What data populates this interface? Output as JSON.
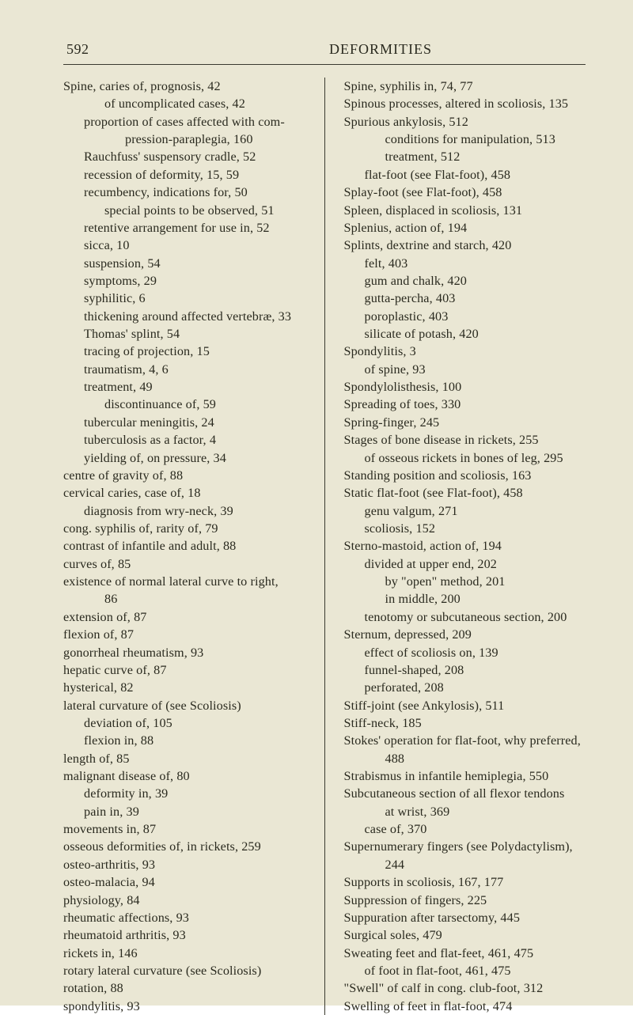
{
  "header": {
    "page_number": "592",
    "title": "DEFORMITIES"
  },
  "colors": {
    "background": "#eae7d4",
    "text": "#2a2a1f",
    "rule": "#3a3a2f"
  },
  "left_column": [
    {
      "l": 0,
      "t": "Spine, caries of, prognosis, 42"
    },
    {
      "l": 2,
      "t": "of uncomplicated cases, 42"
    },
    {
      "l": 1,
      "t": "proportion of cases affected with com-"
    },
    {
      "l": 3,
      "t": "pression-paraplegia, 160"
    },
    {
      "l": 1,
      "t": "Rauchfuss' suspensory cradle, 52"
    },
    {
      "l": 1,
      "t": "recession of deformity, 15, 59"
    },
    {
      "l": 1,
      "t": "recumbency, indications for, 50"
    },
    {
      "l": 2,
      "t": "special points to be observed, 51"
    },
    {
      "l": 1,
      "t": "retentive arrangement for use in, 52"
    },
    {
      "l": 1,
      "t": "sicca, 10"
    },
    {
      "l": 1,
      "t": "suspension, 54"
    },
    {
      "l": 1,
      "t": "symptoms, 29"
    },
    {
      "l": 1,
      "t": "syphilitic, 6"
    },
    {
      "l": 1,
      "t": "thickening around affected vertebræ, 33"
    },
    {
      "l": 1,
      "t": "Thomas' splint, 54"
    },
    {
      "l": 1,
      "t": "tracing of projection, 15"
    },
    {
      "l": 1,
      "t": "traumatism, 4, 6"
    },
    {
      "l": 1,
      "t": "treatment, 49"
    },
    {
      "l": 2,
      "t": "discontinuance of, 59"
    },
    {
      "l": 1,
      "t": "tubercular meningitis, 24"
    },
    {
      "l": 1,
      "t": "tuberculosis as a factor, 4"
    },
    {
      "l": 1,
      "t": "yielding of, on pressure, 34"
    },
    {
      "l": 0,
      "t": "centre of gravity of, 88"
    },
    {
      "l": 0,
      "t": "cervical caries, case of, 18"
    },
    {
      "l": 1,
      "t": "diagnosis from wry-neck, 39"
    },
    {
      "l": 0,
      "t": "cong. syphilis of, rarity of, 79"
    },
    {
      "l": 0,
      "t": "contrast of infantile and adult, 88"
    },
    {
      "l": 0,
      "t": "curves of, 85"
    },
    {
      "l": 0,
      "t": "existence of normal lateral curve to right,"
    },
    {
      "l": 2,
      "t": "86"
    },
    {
      "l": 0,
      "t": "extension of, 87"
    },
    {
      "l": 0,
      "t": "flexion of, 87"
    },
    {
      "l": 0,
      "t": "gonorrheal rheumatism, 93"
    },
    {
      "l": 0,
      "t": "hepatic curve of, 87"
    },
    {
      "l": 0,
      "t": "hysterical, 82"
    },
    {
      "l": 0,
      "t": "lateral curvature of (see Scoliosis)"
    },
    {
      "l": 1,
      "t": "deviation of, 105"
    },
    {
      "l": 1,
      "t": "flexion in, 88"
    },
    {
      "l": 0,
      "t": "length of, 85"
    },
    {
      "l": 0,
      "t": "malignant disease of, 80"
    },
    {
      "l": 1,
      "t": "deformity in, 39"
    },
    {
      "l": 1,
      "t": "pain in, 39"
    },
    {
      "l": 0,
      "t": "movements in, 87"
    },
    {
      "l": 0,
      "t": "osseous deformities of, in rickets, 259"
    },
    {
      "l": 0,
      "t": "osteo-arthritis, 93"
    },
    {
      "l": 0,
      "t": "osteo-malacia, 94"
    },
    {
      "l": 0,
      "t": "physiology, 84"
    },
    {
      "l": 0,
      "t": "rheumatic affections, 93"
    },
    {
      "l": 0,
      "t": "rheumatoid arthritis, 93"
    },
    {
      "l": 0,
      "t": "rickets in, 146"
    },
    {
      "l": 0,
      "t": "rotary lateral curvature (see Scoliosis)"
    },
    {
      "l": 0,
      "t": "rotation, 88"
    },
    {
      "l": 0,
      "t": "spondylitis, 93"
    }
  ],
  "right_column": [
    {
      "l": 0,
      "t": "Spine, syphilis in, 74, 77"
    },
    {
      "l": 0,
      "t": "Spinous processes, altered in scoliosis, 135"
    },
    {
      "l": 0,
      "t": "Spurious ankylosis, 512"
    },
    {
      "l": 2,
      "t": "conditions for manipulation, 513"
    },
    {
      "l": 2,
      "t": "treatment, 512"
    },
    {
      "l": 1,
      "t": "flat-foot (see Flat-foot), 458"
    },
    {
      "l": 0,
      "t": "Splay-foot (see Flat-foot), 458"
    },
    {
      "l": 0,
      "t": "Spleen, displaced in scoliosis, 131"
    },
    {
      "l": 0,
      "t": "Splenius, action of, 194"
    },
    {
      "l": 0,
      "t": "Splints, dextrine and starch, 420"
    },
    {
      "l": 1,
      "t": "felt, 403"
    },
    {
      "l": 1,
      "t": "gum and chalk, 420"
    },
    {
      "l": 1,
      "t": "gutta-percha, 403"
    },
    {
      "l": 1,
      "t": "poroplastic, 403"
    },
    {
      "l": 1,
      "t": "silicate of potash, 420"
    },
    {
      "l": 0,
      "t": "Spondylitis, 3"
    },
    {
      "l": 1,
      "t": "of spine, 93"
    },
    {
      "l": 0,
      "t": "Spondylolisthesis, 100"
    },
    {
      "l": 0,
      "t": "Spreading of toes, 330"
    },
    {
      "l": 0,
      "t": "Spring-finger, 245"
    },
    {
      "l": 0,
      "t": "Stages of bone disease in rickets, 255"
    },
    {
      "l": 1,
      "t": "of osseous rickets in bones of leg, 295"
    },
    {
      "l": 0,
      "t": "Standing position and scoliosis, 163"
    },
    {
      "l": 0,
      "t": "Static flat-foot (see Flat-foot), 458"
    },
    {
      "l": 1,
      "t": "genu valgum, 271"
    },
    {
      "l": 1,
      "t": "scoliosis, 152"
    },
    {
      "l": 0,
      "t": "Sterno-mastoid, action of, 194"
    },
    {
      "l": 1,
      "t": "divided at upper end, 202"
    },
    {
      "l": 2,
      "t": "by \"open\" method, 201"
    },
    {
      "l": 2,
      "t": "in middle, 200"
    },
    {
      "l": 1,
      "t": "tenotomy or subcutaneous section, 200"
    },
    {
      "l": 0,
      "t": "Sternum, depressed, 209"
    },
    {
      "l": 1,
      "t": "effect of scoliosis on, 139"
    },
    {
      "l": 1,
      "t": "funnel-shaped, 208"
    },
    {
      "l": 1,
      "t": "perforated, 208"
    },
    {
      "l": 0,
      "t": "Stiff-joint (see Ankylosis), 511"
    },
    {
      "l": 0,
      "t": "Stiff-neck, 185"
    },
    {
      "l": 0,
      "t": "Stokes' operation for flat-foot, why preferred,"
    },
    {
      "l": 2,
      "t": "488"
    },
    {
      "l": 0,
      "t": "Strabismus in infantile hemiplegia, 550"
    },
    {
      "l": 0,
      "t": "Subcutaneous section of all flexor tendons"
    },
    {
      "l": 2,
      "t": "at wrist, 369"
    },
    {
      "l": 1,
      "t": "case of, 370"
    },
    {
      "l": 0,
      "t": "Supernumerary fingers (see Polydactylism),"
    },
    {
      "l": 2,
      "t": "244"
    },
    {
      "l": 0,
      "t": "Supports in scoliosis, 167, 177"
    },
    {
      "l": 0,
      "t": "Suppression of fingers, 225"
    },
    {
      "l": 0,
      "t": "Suppuration after tarsectomy, 445"
    },
    {
      "l": 0,
      "t": "Surgical soles, 479"
    },
    {
      "l": 0,
      "t": "Sweating feet and flat-feet, 461, 475"
    },
    {
      "l": 1,
      "t": "of foot in flat-foot, 461, 475"
    },
    {
      "l": 0,
      "t": "\"Swell\" of calf in cong. club-foot, 312"
    },
    {
      "l": 0,
      "t": "Swelling of feet in flat-foot, 474"
    }
  ]
}
